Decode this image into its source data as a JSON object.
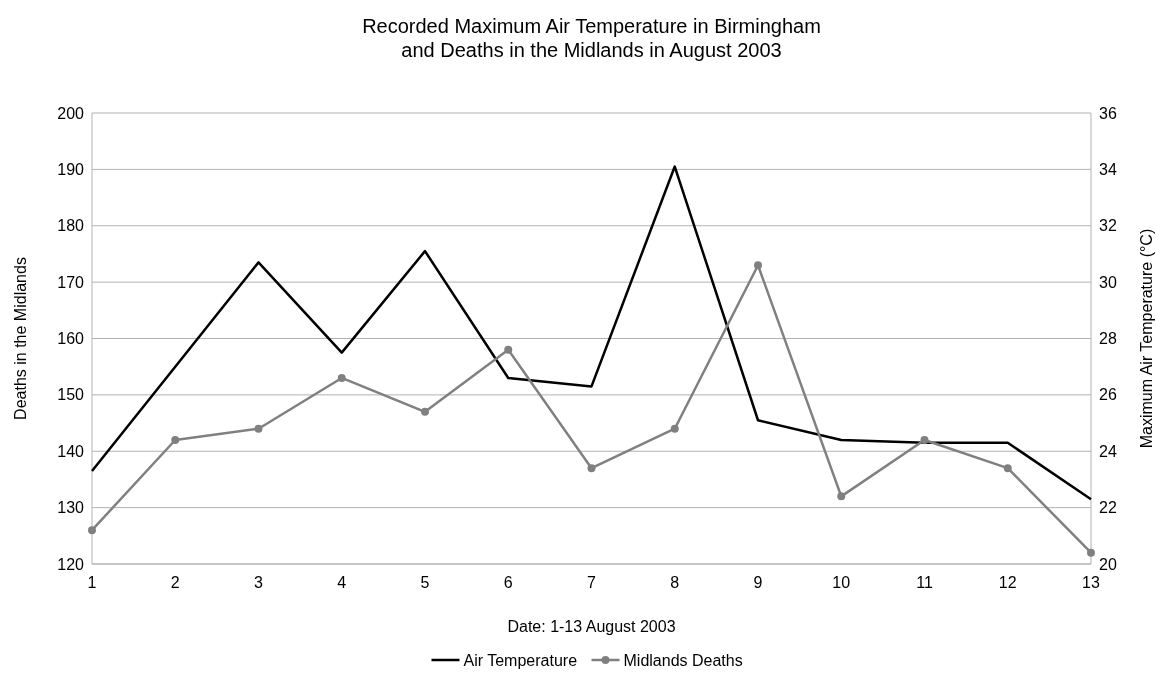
{
  "chart_data": {
    "type": "line",
    "title": "Recorded Maximum Air Temperature in Birmingham\nand Deaths in the Midlands in August 2003",
    "xlabel": "Date: 1-13 August 2003",
    "ylabel": "Deaths in the Midlands",
    "y2label": "Maximum Air Temperature (°C)",
    "x": [
      1,
      2,
      3,
      4,
      5,
      6,
      7,
      8,
      9,
      10,
      11,
      12,
      13
    ],
    "xlim": [
      1,
      13
    ],
    "xticks": [
      1,
      2,
      3,
      4,
      5,
      6,
      7,
      8,
      9,
      10,
      11,
      12,
      13
    ],
    "series": [
      {
        "name": "Air Temperature",
        "color": "#000000",
        "axis": "y2",
        "marker": "none",
        "values": [
          23.3,
          27.0,
          30.7,
          27.5,
          31.1,
          26.6,
          26.3,
          34.1,
          25.1,
          24.4,
          24.3,
          24.3,
          22.3
        ]
      },
      {
        "name": "Midlands Deaths",
        "color": "#808080",
        "axis": "y",
        "marker": "circle",
        "values": [
          126,
          142,
          144,
          153,
          147,
          158,
          137,
          144,
          173,
          132,
          142,
          137,
          122
        ]
      }
    ],
    "ylim": [
      120,
      200
    ],
    "yticks": [
      120,
      130,
      140,
      150,
      160,
      170,
      180,
      190,
      200
    ],
    "y2lim": [
      20,
      36
    ],
    "y2ticks": [
      20,
      22,
      24,
      26,
      28,
      30,
      32,
      34,
      36
    ],
    "grid": "y",
    "legend": "bottom",
    "line_style": "solid"
  }
}
